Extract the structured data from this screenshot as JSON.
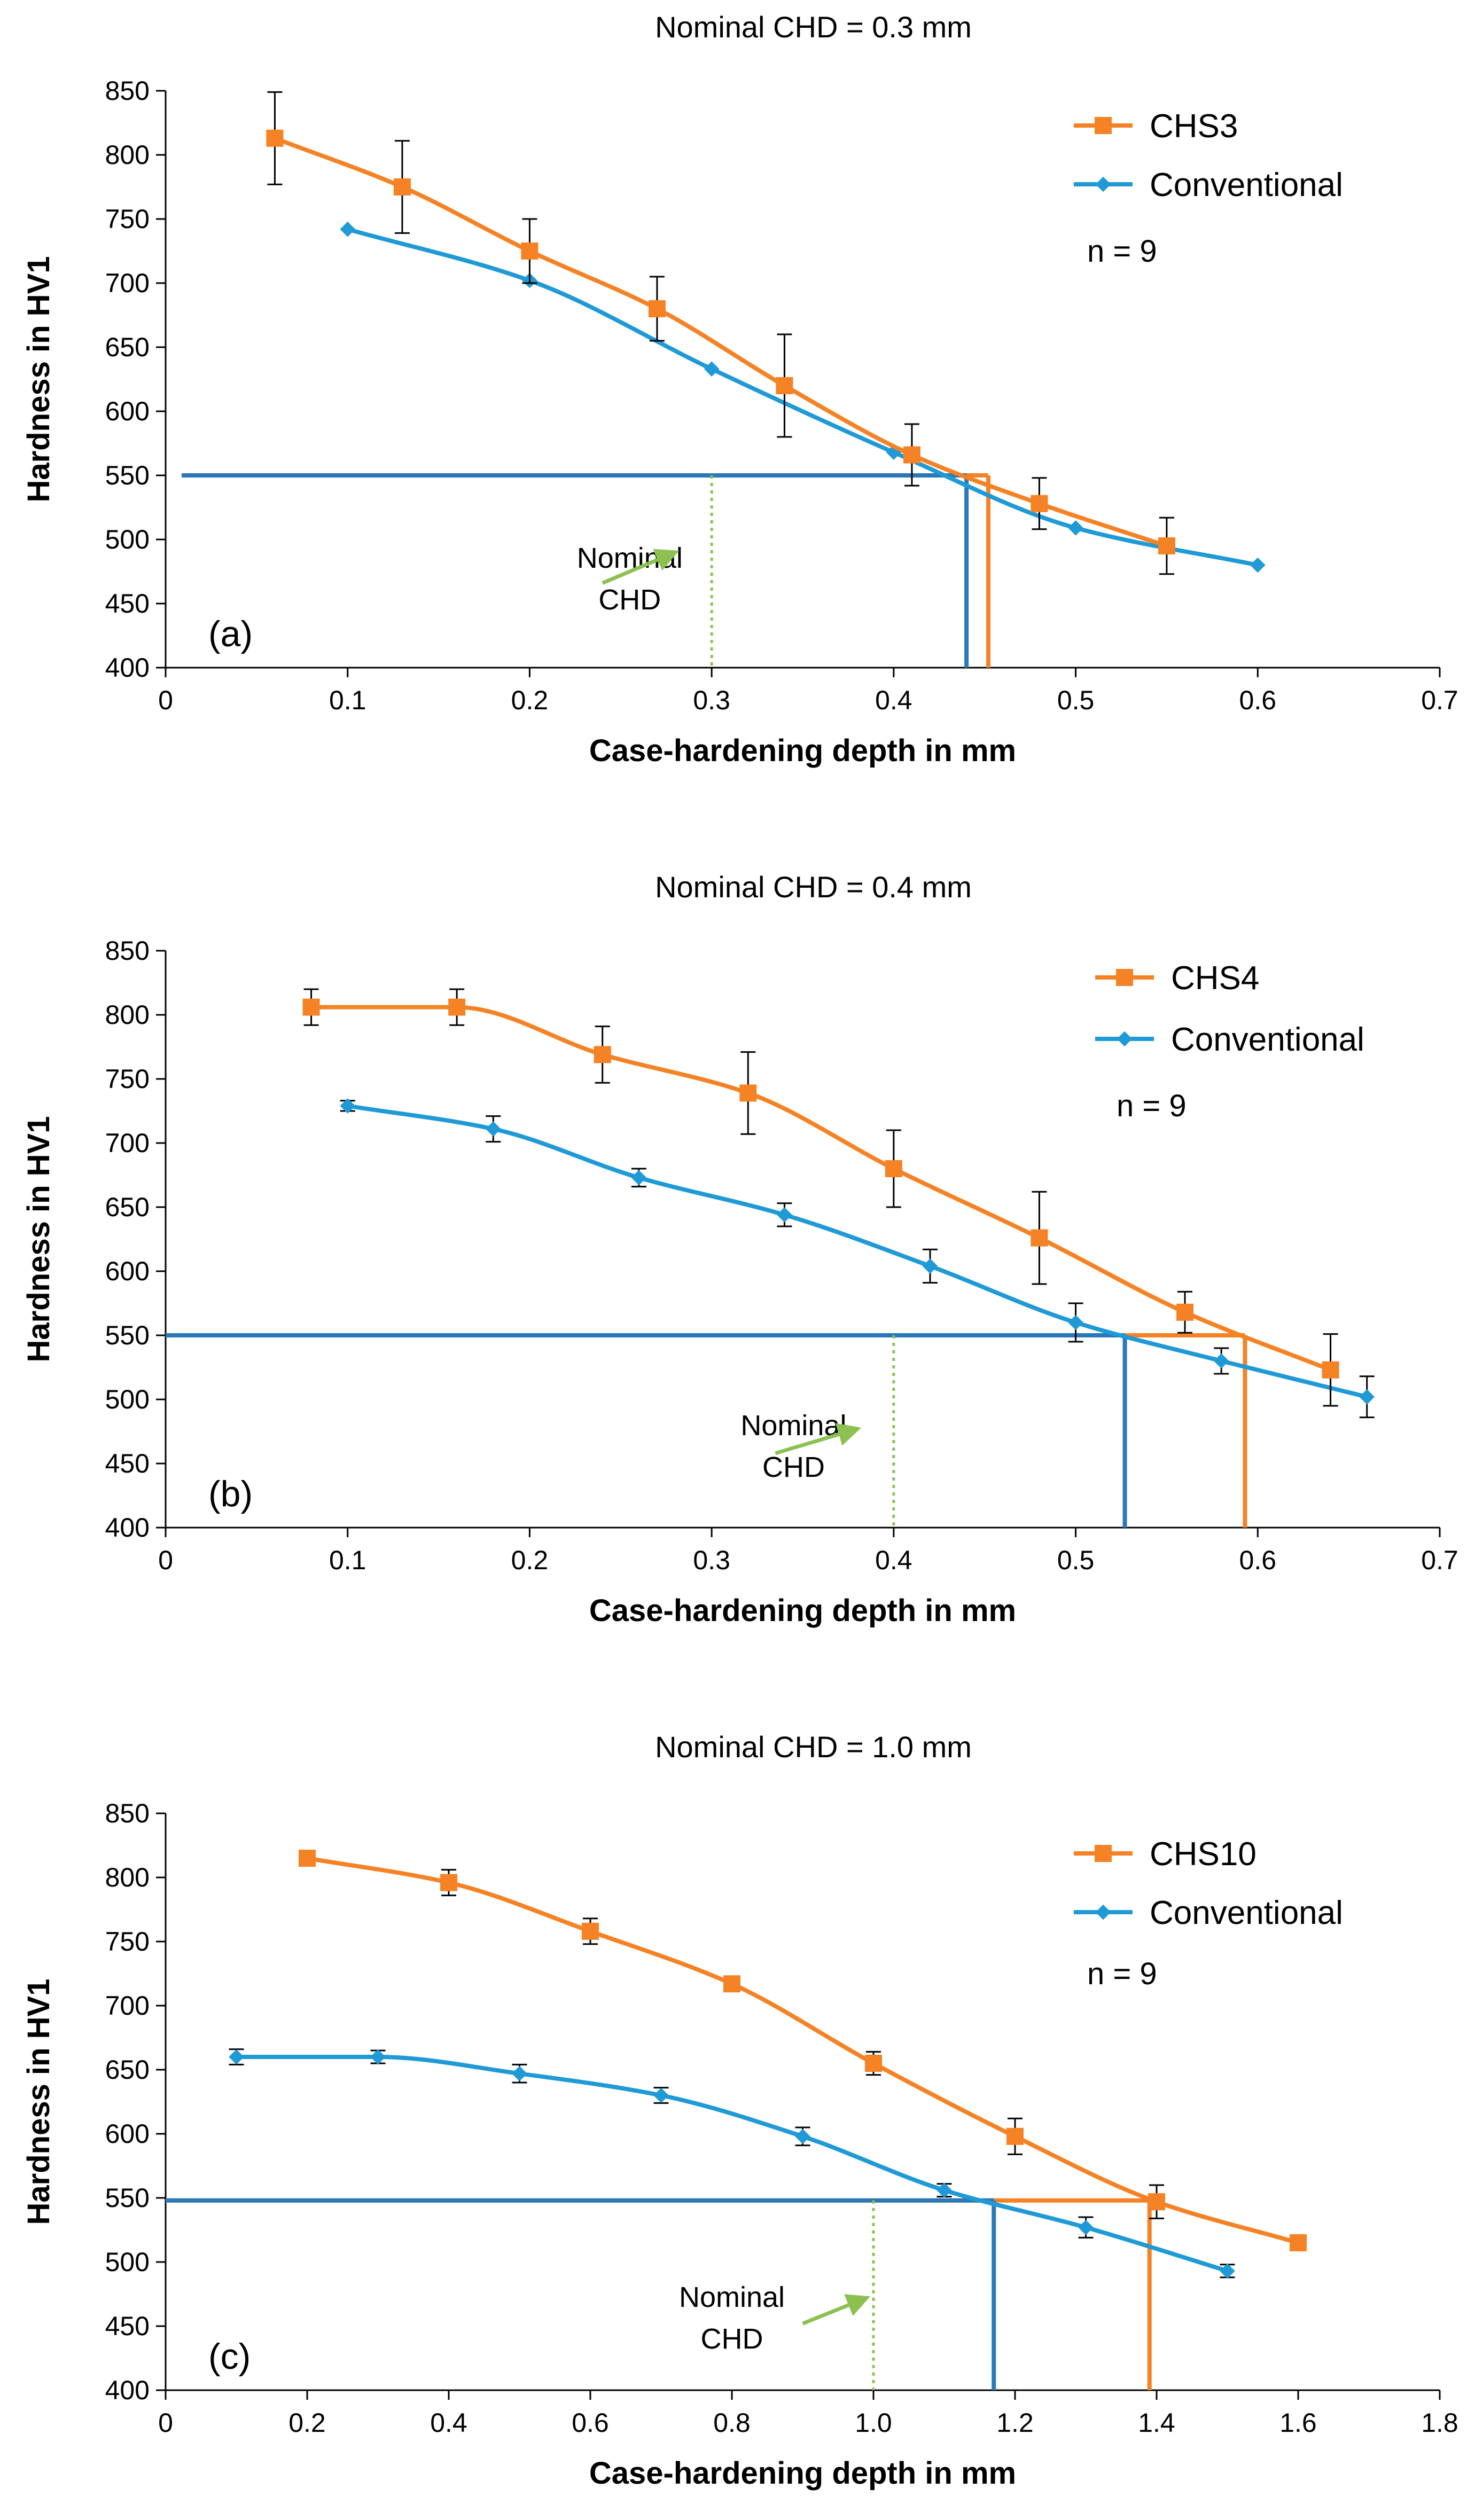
{
  "figure": {
    "colors": {
      "chs": "#F58225",
      "conventional": "#1F9AD6",
      "cutoff_line": "#2A78B8",
      "nominal": "#8CC152",
      "error_bar": "#000000",
      "axis": "#000000",
      "grid": "#D9D9D9"
    }
  },
  "chart_data": [
    {
      "type": "line",
      "id": "a",
      "title": "Nominal CHD = 0.3 mm",
      "xlabel": "Case-hardening depth in mm",
      "ylabel": "Hardness in HV1",
      "panel_label": "(a)",
      "xlim": [
        0,
        0.7
      ],
      "ylim": [
        400,
        850
      ],
      "xticks": [
        0,
        0.1,
        0.2,
        0.3,
        0.4,
        0.5,
        0.6,
        0.7
      ],
      "xtick_labels": [
        "0",
        "0.1",
        "0.2",
        "0.3",
        "0.4",
        "0.5",
        "0.6",
        "0.7"
      ],
      "yticks": [
        400,
        450,
        500,
        550,
        600,
        650,
        700,
        750,
        800,
        850
      ],
      "ytick_labels": [
        "400",
        "450",
        "500",
        "550",
        "600",
        "650",
        "700",
        "750",
        "800",
        "850"
      ],
      "n_label": "n = 9",
      "annotation": {
        "line1": "Nominal",
        "line2": "CHD",
        "x": 0.3,
        "text_x": 0.255,
        "text_y": 478,
        "arrow_from": [
          0.24,
          466
        ],
        "arrow_to": [
          0.28,
          490
        ]
      },
      "threshold": 550,
      "series": [
        {
          "name": "CHS3",
          "kind": "chs",
          "marker": "square",
          "x": [
            0.06,
            0.13,
            0.2,
            0.27,
            0.34,
            0.41,
            0.48,
            0.55
          ],
          "y": [
            813,
            775,
            725,
            680,
            620,
            566,
            528,
            495
          ],
          "err": [
            36,
            36,
            25,
            25,
            40,
            24,
            20,
            22
          ],
          "chd": 0.452
        },
        {
          "name": "Conventional",
          "kind": "conventional",
          "marker": "diamond",
          "x": [
            0.1,
            0.2,
            0.3,
            0.4,
            0.5,
            0.6
          ],
          "y": [
            742,
            702,
            633,
            568,
            509,
            480
          ],
          "err": [
            0,
            0,
            0,
            0,
            0,
            0
          ],
          "chd": 0.44
        }
      ]
    },
    {
      "type": "line",
      "id": "b",
      "title": "Nominal CHD = 0.4 mm",
      "xlabel": "Case-hardening depth in mm",
      "ylabel": "Hardness in HV1",
      "panel_label": "(b)",
      "xlim": [
        0,
        0.7
      ],
      "ylim": [
        400,
        850
      ],
      "xticks": [
        0,
        0.1,
        0.2,
        0.3,
        0.4,
        0.5,
        0.6,
        0.7
      ],
      "xtick_labels": [
        "0",
        "0.1",
        "0.2",
        "0.3",
        "0.4",
        "0.5",
        "0.6",
        "0.7"
      ],
      "yticks": [
        400,
        450,
        500,
        550,
        600,
        650,
        700,
        750,
        800,
        850
      ],
      "ytick_labels": [
        "400",
        "450",
        "500",
        "550",
        "600",
        "650",
        "700",
        "750",
        "800",
        "850"
      ],
      "n_label": "n = 9",
      "annotation": {
        "line1": "Nominal",
        "line2": "CHD",
        "x": 0.4,
        "text_x": 0.345,
        "text_y": 472,
        "arrow_from": [
          0.335,
          458
        ],
        "arrow_to": [
          0.38,
          477
        ]
      },
      "threshold": 550,
      "series": [
        {
          "name": "CHS4",
          "kind": "chs",
          "marker": "square",
          "x": [
            0.08,
            0.16,
            0.24,
            0.32,
            0.4,
            0.48,
            0.56,
            0.64
          ],
          "y": [
            806,
            806,
            769,
            739,
            680,
            626,
            568,
            523
          ],
          "err": [
            14,
            14,
            22,
            32,
            30,
            36,
            16,
            28
          ],
          "chd": 0.593
        },
        {
          "name": "Conventional",
          "kind": "conventional",
          "marker": "diamond",
          "x": [
            0.1,
            0.18,
            0.26,
            0.34,
            0.42,
            0.5,
            0.58,
            0.66
          ],
          "y": [
            729,
            711,
            673,
            644,
            604,
            560,
            530,
            502
          ],
          "err": [
            4,
            10,
            7,
            9,
            13,
            15,
            10,
            16
          ],
          "chd": 0.527
        }
      ]
    },
    {
      "type": "line",
      "id": "c",
      "title": "Nominal CHD = 1.0 mm",
      "xlabel": "Case-hardening depth in mm",
      "ylabel": "Hardness in HV1",
      "panel_label": "(c)",
      "xlim": [
        0,
        1.8
      ],
      "ylim": [
        400,
        850
      ],
      "xticks": [
        0,
        0.2,
        0.4,
        0.6,
        0.8,
        1.0,
        1.2,
        1.4,
        1.6,
        1.8
      ],
      "xtick_labels": [
        "0",
        "0.2",
        "0.4",
        "0.6",
        "0.8",
        "1.0",
        "1.2",
        "1.4",
        "1.6",
        "1.8"
      ],
      "yticks": [
        400,
        450,
        500,
        550,
        600,
        650,
        700,
        750,
        800,
        850
      ],
      "ytick_labels": [
        "400",
        "450",
        "500",
        "550",
        "600",
        "650",
        "700",
        "750",
        "800",
        "850"
      ],
      "n_label": "n = 9",
      "annotation": {
        "line1": "Nominal",
        "line2": "CHD",
        "x": 1.0,
        "text_x": 0.8,
        "text_y": 465,
        "arrow_from": [
          0.9,
          452
        ],
        "arrow_to": [
          0.99,
          472
        ]
      },
      "threshold": 548,
      "series": [
        {
          "name": "CHS10",
          "kind": "chs",
          "marker": "square",
          "x": [
            0.2,
            0.4,
            0.6,
            0.8,
            1.0,
            1.2,
            1.4,
            1.6
          ],
          "y": [
            815,
            796,
            758,
            717,
            655,
            598,
            547,
            515
          ],
          "err": [
            0,
            10,
            10,
            0,
            9,
            14,
            13,
            0
          ],
          "chd": 1.39
        },
        {
          "name": "Conventional",
          "kind": "conventional",
          "marker": "diamond",
          "x": [
            0.1,
            0.3,
            0.5,
            0.7,
            0.9,
            1.1,
            1.3,
            1.5
          ],
          "y": [
            660,
            660,
            647,
            630,
            598,
            556,
            527,
            493
          ],
          "err": [
            6,
            5,
            7,
            6,
            7,
            5,
            8,
            5
          ],
          "chd": 1.17
        }
      ]
    }
  ]
}
